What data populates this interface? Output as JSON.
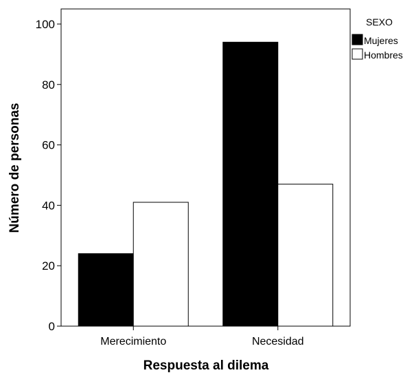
{
  "chart_data": {
    "type": "bar",
    "xlabel": "Respuesta al dilema",
    "ylabel": "Número de personas",
    "categories": [
      "Merecimiento",
      "Necesidad"
    ],
    "series": [
      {
        "name": "Mujeres",
        "values": [
          24,
          94
        ],
        "color": "#000000"
      },
      {
        "name": "Hombres",
        "values": [
          41,
          47
        ],
        "color": "#ffffff"
      }
    ],
    "ylim": [
      0,
      105
    ],
    "yticks": [
      0,
      20,
      40,
      60,
      80,
      100
    ],
    "grid": false,
    "legend": {
      "title": "SEXO",
      "placement": "right-top"
    }
  }
}
